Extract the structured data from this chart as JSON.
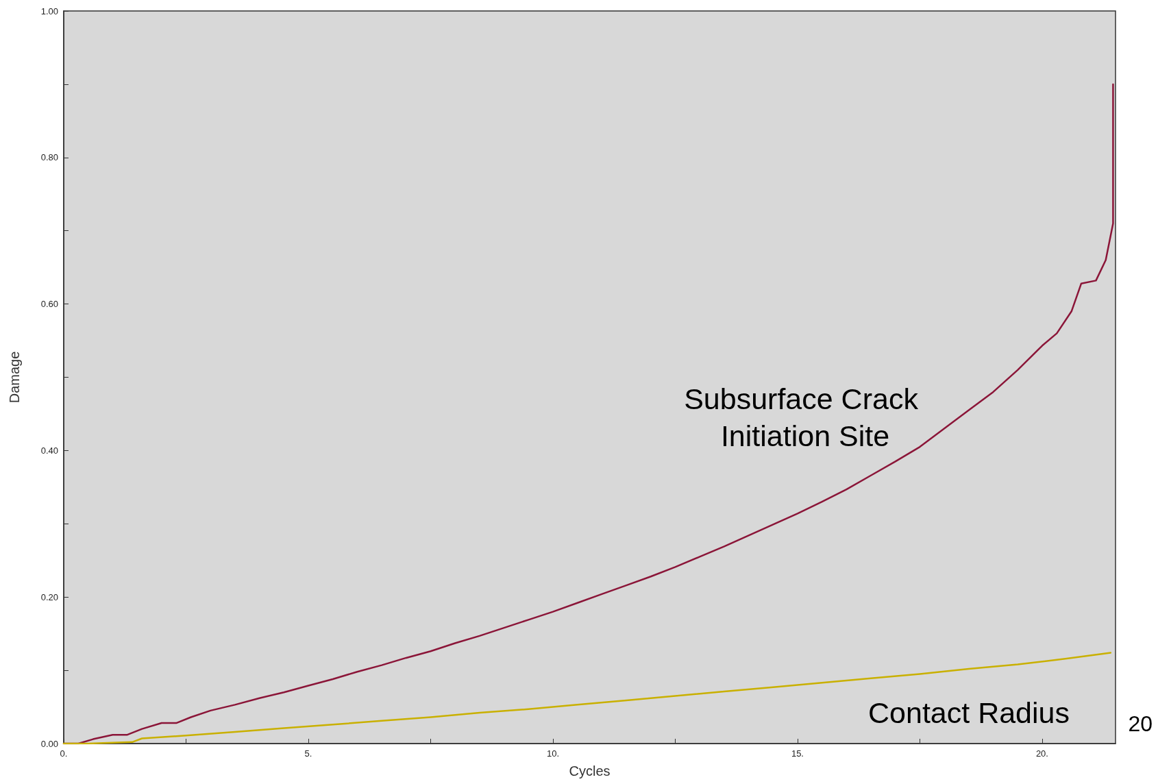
{
  "chart_data": {
    "type": "line",
    "xlabel": "Cycles",
    "ylabel": "Damage",
    "xlim": [
      0,
      21.5
    ],
    "ylim": [
      0,
      1
    ],
    "xticks": [
      {
        "value": 0,
        "label": "0."
      },
      {
        "value": 2.5,
        "label": null
      },
      {
        "value": 5,
        "label": "5."
      },
      {
        "value": 7.5,
        "label": null
      },
      {
        "value": 10,
        "label": "10."
      },
      {
        "value": 12.5,
        "label": null
      },
      {
        "value": 15,
        "label": "15."
      },
      {
        "value": 17.5,
        "label": null
      },
      {
        "value": 20,
        "label": "20."
      }
    ],
    "yticks": [
      {
        "value": 0,
        "label": "0.00"
      },
      {
        "value": 0.1,
        "label": null
      },
      {
        "value": 0.2,
        "label": "0.20"
      },
      {
        "value": 0.3,
        "label": null
      },
      {
        "value": 0.4,
        "label": "0.40"
      },
      {
        "value": 0.5,
        "label": null
      },
      {
        "value": 0.6,
        "label": "0.60"
      },
      {
        "value": 0.7,
        "label": null
      },
      {
        "value": 0.8,
        "label": "0.80"
      },
      {
        "value": 0.9,
        "label": null
      },
      {
        "value": 1,
        "label": "1.00"
      }
    ],
    "grid": false,
    "legend": false,
    "marker": "none",
    "line_style": "solid",
    "series": [
      {
        "name": "Subsurface Crack Initiation Site",
        "color": "#8b1538",
        "x": [
          0,
          0.3,
          0.6,
          1,
          1.3,
          1.6,
          2,
          2.3,
          2.6,
          3,
          3.5,
          4,
          4.5,
          5,
          5.5,
          6,
          6.5,
          7,
          7.5,
          8,
          8.5,
          9,
          9.5,
          10,
          10.5,
          11,
          11.5,
          12,
          12.5,
          13,
          13.5,
          14,
          14.5,
          15,
          15.5,
          16,
          16.5,
          17,
          17.5,
          18,
          18.5,
          19,
          19.5,
          20,
          20.3,
          20.6,
          20.8,
          21.1,
          21.3,
          21.45,
          21.45
        ],
        "values": [
          0,
          0,
          0.006,
          0.012,
          0.012,
          0.02,
          0.028,
          0.028,
          0.036,
          0.045,
          0.053,
          0.062,
          0.07,
          0.079,
          0.088,
          0.098,
          0.107,
          0.117,
          0.126,
          0.137,
          0.147,
          0.158,
          0.169,
          0.18,
          0.192,
          0.204,
          0.216,
          0.228,
          0.241,
          0.255,
          0.269,
          0.284,
          0.299,
          0.314,
          0.33,
          0.347,
          0.366,
          0.385,
          0.405,
          0.43,
          0.455,
          0.48,
          0.51,
          0.543,
          0.56,
          0.59,
          0.628,
          0.632,
          0.66,
          0.71,
          0.9
        ]
      },
      {
        "name": "Contact Radius",
        "color": "#c9b000",
        "x": [
          0,
          0.5,
          1.4,
          1.6,
          2.5,
          3.5,
          4.5,
          5.5,
          6.5,
          7.5,
          8.5,
          9.5,
          10.5,
          11.5,
          12.5,
          13.5,
          14.5,
          15.5,
          16.5,
          17.5,
          18.5,
          19.5,
          20.5,
          21.4
        ],
        "values": [
          0,
          0,
          0.002,
          0.007,
          0.011,
          0.016,
          0.021,
          0.026,
          0.031,
          0.036,
          0.042,
          0.047,
          0.053,
          0.059,
          0.065,
          0.071,
          0.077,
          0.083,
          0.089,
          0.095,
          0.102,
          0.108,
          0.116,
          0.124
        ]
      }
    ],
    "annotations": [
      "20"
    ]
  }
}
